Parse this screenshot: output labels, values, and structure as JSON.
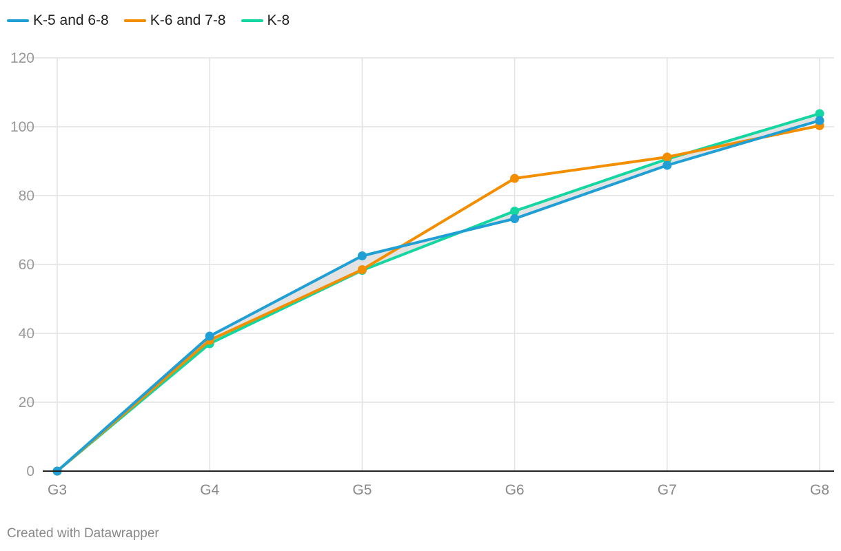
{
  "colors": {
    "K-5 and 6-8": "#1f9fd4",
    "K-6 and 7-8": "#f28e00",
    "K-8": "#13d6a0",
    "grid": "#e2e2e2",
    "axis": "#222222",
    "band": "#dedede"
  },
  "chart_data": {
    "type": "line",
    "categories": [
      "G3",
      "G4",
      "G5",
      "G6",
      "G7",
      "G8"
    ],
    "series": [
      {
        "name": "K-5 and 6-8",
        "values": [
          0,
          39.2,
          62.5,
          73.3,
          88.8,
          101.8
        ]
      },
      {
        "name": "K-6 and 7-8",
        "values": [
          0,
          38.0,
          58.5,
          85.0,
          91.2,
          100.3
        ]
      },
      {
        "name": "K-8",
        "values": [
          0,
          37.0,
          58.3,
          75.5,
          90.6,
          103.8
        ]
      }
    ],
    "yticks": [
      0,
      20,
      40,
      60,
      80,
      100,
      120
    ],
    "ylim": [
      0,
      120
    ],
    "grid": true,
    "legend": "top-left",
    "markers": true,
    "shaded_band_between": [
      "K-5 and 6-8",
      "K-8"
    ]
  },
  "footer": {
    "credit": "Created with Datawrapper"
  }
}
